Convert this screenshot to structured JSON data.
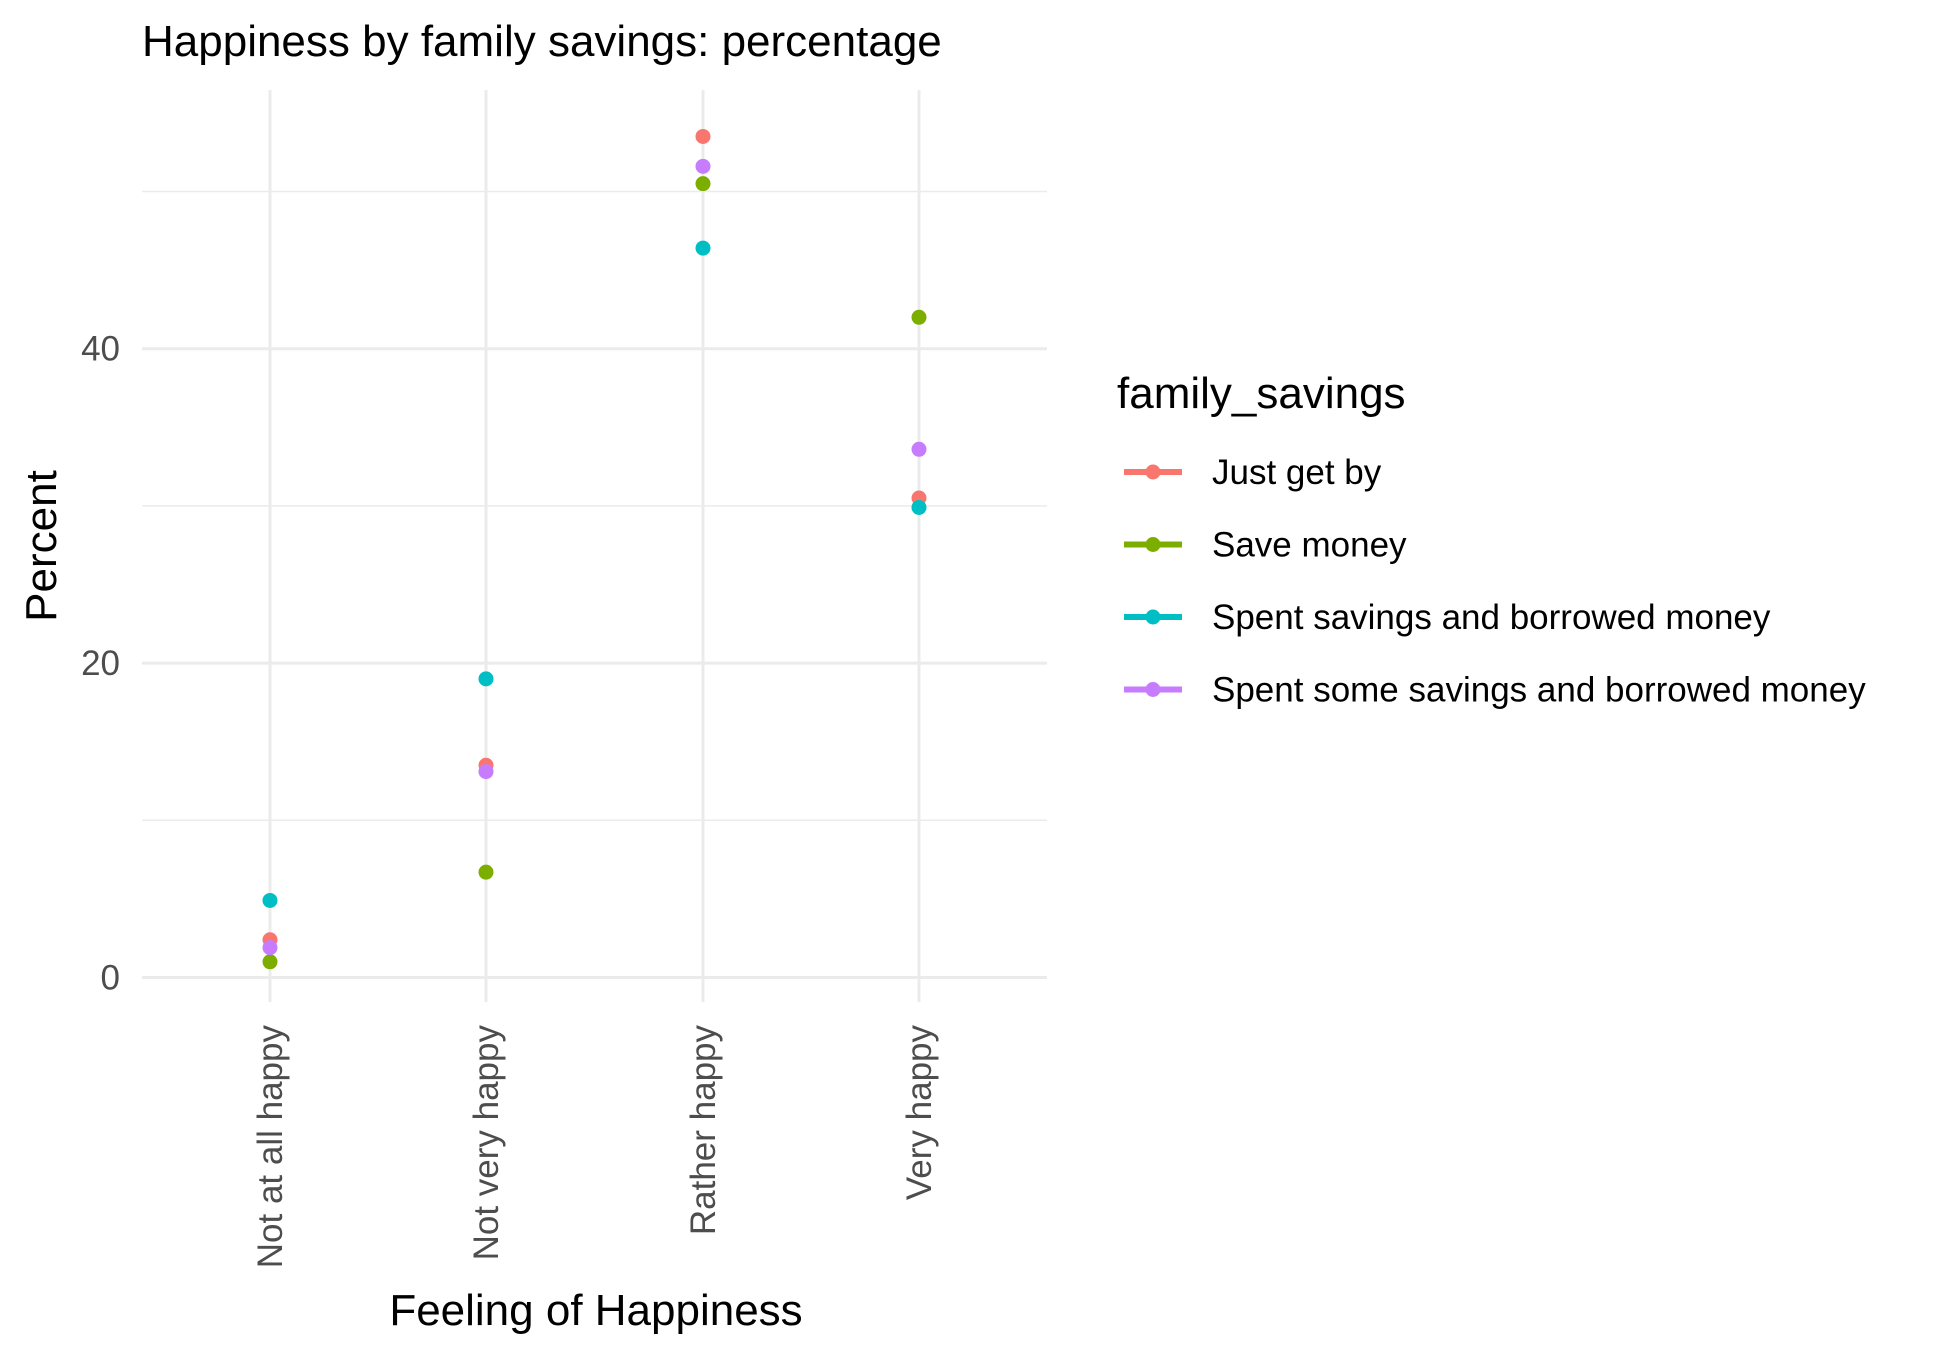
{
  "chart_data": {
    "type": "scatter",
    "title": "Happiness by family savings: percentage",
    "xlabel": "Feeling of Happiness",
    "ylabel": "Percent",
    "categories": [
      "Not at all happy",
      "Not very happy",
      "Rather happy",
      "Very happy"
    ],
    "yticks": [
      0,
      20,
      40
    ],
    "ylim": [
      -0.5,
      56
    ],
    "grid": true,
    "legend": {
      "title": "family_savings",
      "position": "right"
    },
    "series": [
      {
        "name": "Just get by",
        "color": "#F8766D",
        "values": [
          2.4,
          13.5,
          53.5,
          30.5
        ]
      },
      {
        "name": "Save money",
        "color": "#7CAE00",
        "values": [
          1.0,
          6.7,
          50.5,
          42.0
        ]
      },
      {
        "name": "Spent savings and borrowed money",
        "color": "#00BFC4",
        "values": [
          4.9,
          19.0,
          46.4,
          29.9
        ]
      },
      {
        "name": "Spent some savings and borrowed money",
        "color": "#C77CFF",
        "values": [
          1.9,
          13.1,
          51.6,
          33.6
        ]
      }
    ]
  }
}
